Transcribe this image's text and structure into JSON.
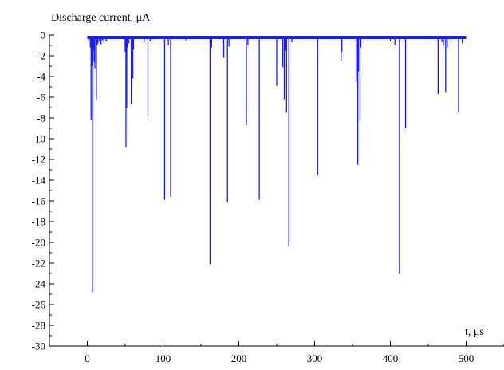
{
  "chart_data": {
    "type": "bar",
    "ylabel": "Discharge current, μA",
    "xlabel": "t, μs",
    "xlim": [
      -50,
      550
    ],
    "ylim": [
      -30,
      0
    ],
    "xticks": [
      "0",
      "100",
      "200",
      "300",
      "400",
      "500"
    ],
    "yticks": [
      "0",
      "-2",
      "-4",
      "-6",
      "-8",
      "-10",
      "-12",
      "-14",
      "-16",
      "-18",
      "-20",
      "-22",
      "-24",
      "-26",
      "-28",
      "-30"
    ],
    "baseline": {
      "x_start": 0,
      "x_end": 500,
      "value": -0.2
    },
    "color": "#1a1aff",
    "series": [
      {
        "x": [
          2,
          4,
          5,
          6,
          7,
          8,
          9,
          10,
          12,
          13,
          14,
          16,
          18,
          20,
          22,
          25,
          50,
          51,
          52,
          53,
          55,
          58,
          60,
          61,
          75,
          80,
          83,
          102,
          107,
          110,
          130,
          162,
          164,
          180,
          185,
          187,
          210,
          212,
          227,
          250,
          258,
          260,
          262,
          263,
          266,
          270,
          304,
          335,
          336,
          355,
          357,
          358,
          360,
          361,
          400,
          406,
          412,
          420,
          463,
          468,
          470,
          473,
          475,
          480,
          490,
          495
        ],
        "y": [
          -0.6,
          -1.2,
          -8.2,
          -3.0,
          -24.8,
          -1.5,
          -2.6,
          -3.2,
          -6.2,
          -1.0,
          -0.8,
          -0.6,
          -0.9,
          -0.5,
          -0.7,
          -0.6,
          -1.6,
          -10.8,
          -7.0,
          -1.2,
          -0.8,
          -6.7,
          -4.2,
          -1.4,
          -0.7,
          -7.8,
          -0.6,
          -15.9,
          -1.0,
          -15.6,
          -0.5,
          -22.1,
          -1.2,
          -2.2,
          -16.1,
          -1.1,
          -8.7,
          -1.0,
          -15.9,
          -4.9,
          -3.1,
          -6.2,
          -1.5,
          -7.5,
          -20.3,
          -0.7,
          -13.5,
          -2.5,
          -1.6,
          -4.5,
          -12.5,
          -3.5,
          -8.3,
          -1.2,
          -0.6,
          -1.0,
          -23.0,
          -9.0,
          -5.7,
          -0.7,
          -1.0,
          -5.5,
          -1.2,
          -0.6,
          -7.5,
          -0.8
        ]
      }
    ]
  }
}
